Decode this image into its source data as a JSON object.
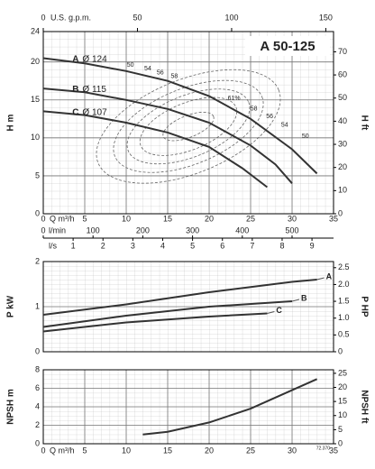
{
  "chart_data": [
    {
      "type": "line",
      "title": "A 50-125",
      "x_label": "Q m³/h",
      "y_label": "H m",
      "y2_label": "H ft",
      "xlim": [
        0,
        35
      ],
      "xticks": [
        0,
        5,
        10,
        15,
        20,
        25,
        30,
        35
      ],
      "ylim": [
        0,
        24
      ],
      "yticks": [
        0,
        5,
        10,
        15,
        20,
        24
      ],
      "y2lim": [
        0,
        78.74
      ],
      "y2ticks": [
        0,
        10,
        20,
        30,
        40,
        50,
        60,
        70
      ],
      "top_axis": {
        "label": "U.S. g.p.m.",
        "lim": [
          0,
          154.1
        ],
        "ticks": [
          0,
          50,
          100,
          150
        ]
      },
      "extra_axes": [
        {
          "label": "l/min",
          "lim": [
            0,
            583.33
          ],
          "ticks": [
            0,
            100,
            200,
            300,
            400,
            500
          ]
        },
        {
          "label": "l/s",
          "lim": [
            0,
            9.722
          ],
          "ticks": [
            1,
            2,
            3,
            4,
            5,
            6,
            7,
            8,
            9
          ]
        }
      ],
      "grid": true,
      "series": [
        {
          "name": "A",
          "label": "Ø 124",
          "color": "#333333",
          "x": [
            0,
            5,
            10,
            15,
            20,
            25,
            30,
            33
          ],
          "values": [
            20.5,
            19.8,
            18.8,
            17.5,
            15.5,
            12.5,
            8.5,
            5.3
          ]
        },
        {
          "name": "B",
          "label": "Ø 115",
          "color": "#333333",
          "x": [
            0,
            5,
            10,
            15,
            20,
            25,
            28,
            30
          ],
          "values": [
            16.5,
            16,
            15,
            13.8,
            12,
            9,
            6.5,
            4
          ]
        },
        {
          "name": "C",
          "label": "Ø 107",
          "color": "#333333",
          "x": [
            0,
            5,
            10,
            15,
            20,
            24,
            27
          ],
          "values": [
            13.5,
            13,
            12,
            10.7,
            8.8,
            6,
            3.5
          ]
        }
      ],
      "efficiency_labels": [
        "50",
        "54",
        "56",
        "58",
        "61%",
        "58",
        "56",
        "54",
        "50"
      ]
    },
    {
      "type": "line",
      "y_label": "P kW",
      "y2_label": "P HP",
      "xlim": [
        0,
        35
      ],
      "ylim": [
        0,
        2
      ],
      "yticks": [
        0,
        1,
        2
      ],
      "y2lim": [
        0,
        2.682
      ],
      "y2ticks": [
        0,
        0.5,
        {
          "value": 1,
          "label": "1.0"
        },
        1.5,
        {
          "value": 2,
          "label": "2.0"
        },
        2.5
      ],
      "grid": true,
      "series": [
        {
          "name": "A",
          "color": "#333333",
          "x": [
            0,
            10,
            20,
            30,
            33
          ],
          "values": [
            0.82,
            1.05,
            1.32,
            1.55,
            1.6
          ]
        },
        {
          "name": "B",
          "color": "#333333",
          "x": [
            0,
            10,
            20,
            30
          ],
          "values": [
            0.55,
            0.8,
            1.0,
            1.12
          ]
        },
        {
          "name": "C",
          "color": "#333333",
          "x": [
            0,
            10,
            20,
            27
          ],
          "values": [
            0.45,
            0.65,
            0.78,
            0.85
          ]
        }
      ]
    },
    {
      "type": "line",
      "x_label": "Q m³/h",
      "y_label": "NPSH m",
      "y2_label": "NPSH ft",
      "note": "72.370",
      "xlim": [
        0,
        35
      ],
      "xticks": [
        0,
        5,
        10,
        15,
        20,
        25,
        30,
        35
      ],
      "ylim": [
        0,
        8
      ],
      "yticks": [
        0,
        2,
        4,
        6,
        8
      ],
      "y2lim": [
        0,
        26.25
      ],
      "y2ticks": [
        0,
        5,
        10,
        15,
        20,
        25
      ],
      "grid": true,
      "series": [
        {
          "color": "#333333",
          "x": [
            12,
            15,
            20,
            25,
            30,
            33
          ],
          "values": [
            1.0,
            1.3,
            2.3,
            3.8,
            5.8,
            7.0
          ]
        }
      ]
    }
  ]
}
